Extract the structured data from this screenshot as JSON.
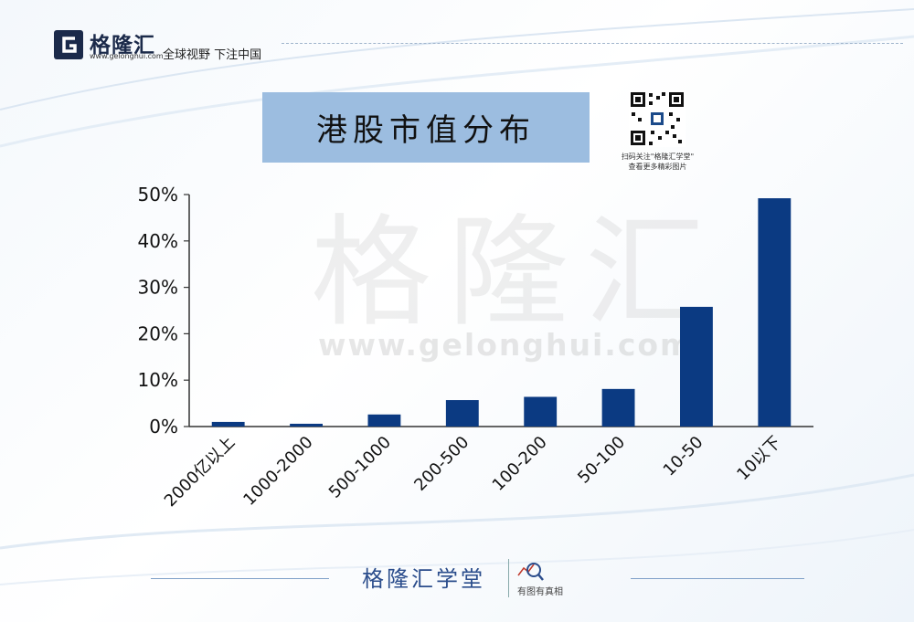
{
  "header": {
    "brand": "格隆汇",
    "url": "www.gelonghui.com",
    "slogan": "全球视野 下注中国"
  },
  "title": "港股市值分布",
  "qr": {
    "caption_line1": "扫码关注\"格隆汇学堂\"",
    "caption_line2": "查看更多精彩图片"
  },
  "watermark": {
    "text": "格隆汇",
    "url": "www.gelonghui.com"
  },
  "footer": {
    "brand": "格隆汇学堂",
    "tagline": "有图有真相"
  },
  "colors": {
    "bar": "#0b3a82",
    "title_bg": "#9cbde0",
    "axis": "#333333"
  },
  "chart_data": {
    "type": "bar",
    "title": "港股市值分布",
    "categories": [
      "2000亿以上",
      "1000-2000",
      "500-1000",
      "200-500",
      "100-200",
      "50-100",
      "10-50",
      "10以下"
    ],
    "values": [
      1.0,
      0.6,
      2.6,
      5.7,
      6.4,
      8.1,
      25.8,
      49.2
    ],
    "value_unit": "%",
    "ylim": [
      0,
      50
    ],
    "yticks": [
      "0%",
      "10%",
      "20%",
      "30%",
      "40%",
      "50%"
    ],
    "xlabel": "",
    "ylabel": "",
    "grid": false,
    "legend": "none"
  }
}
